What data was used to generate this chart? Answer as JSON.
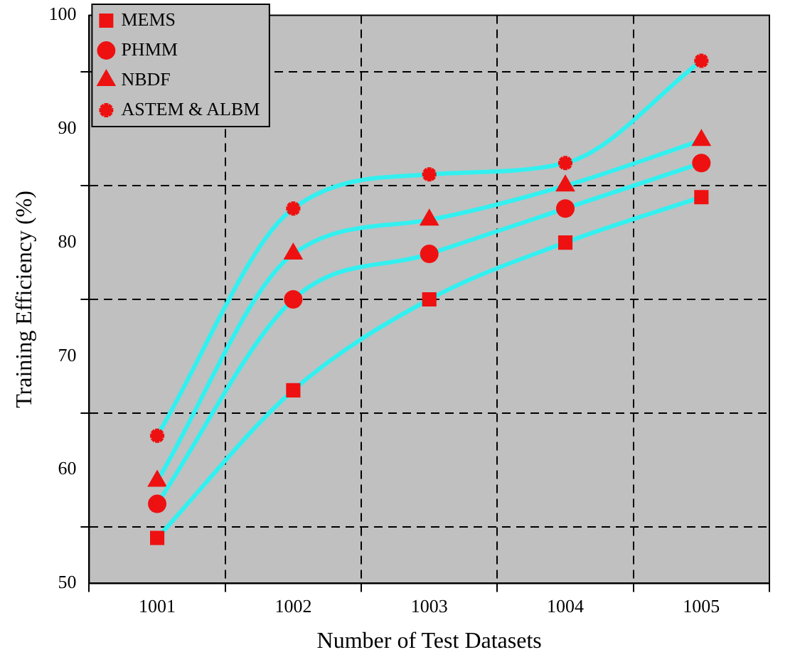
{
  "chart_data": {
    "type": "line",
    "xlabel": "Number of Test Datasets",
    "ylabel": "Training Efficiency (%)",
    "categories": [
      "1001",
      "1002",
      "1003",
      "1004",
      "1005"
    ],
    "ylim": [
      50,
      100
    ],
    "yticks": [
      50,
      {
        "value": 55,
        "label": null
      },
      60,
      {
        "value": 65,
        "label": null
      },
      70,
      {
        "value": 75,
        "label": null
      },
      80,
      {
        "value": 85,
        "label": null
      },
      90,
      {
        "value": 95,
        "label": null
      },
      100
    ],
    "grid": true,
    "legend": "top left",
    "line_style": "solid",
    "series": [
      {
        "name": "MEMS",
        "color": "#33f0f0",
        "marker": "square",
        "values": [
          54,
          67,
          75,
          80,
          84
        ]
      },
      {
        "name": "PHMM",
        "color": "#33f0f0",
        "marker": "circle",
        "values": [
          57,
          75,
          79,
          83,
          87
        ]
      },
      {
        "name": "NBDF",
        "color": "#33f0f0",
        "marker": "triangle",
        "values": [
          59,
          79,
          82,
          85,
          89
        ]
      },
      {
        "name": "ASTEM & ALBM",
        "color": "#33f0f0",
        "marker": "cross",
        "values": [
          63,
          83,
          86,
          87,
          96
        ]
      }
    ]
  }
}
